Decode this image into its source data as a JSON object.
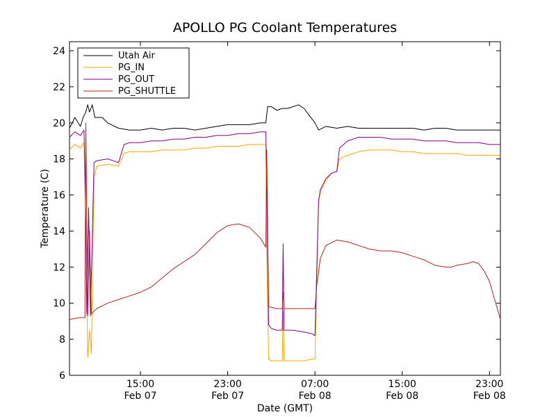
{
  "chart_data": {
    "type": "line",
    "title": "APOLLO PG Coolant Temperatures",
    "xlabel": "Date (GMT)",
    "ylabel": "Temperature (C)",
    "xlim": [
      "2013-02-07 08:30",
      "2013-02-09 00:00"
    ],
    "ylim": [
      6,
      24.5
    ],
    "y_ticks": [
      6,
      8,
      10,
      12,
      14,
      16,
      18,
      20,
      22,
      24
    ],
    "x_ticks": [
      {
        "time": "2013-02-07 15:00",
        "label_time": "15:00",
        "label_date": "Feb 07"
      },
      {
        "time": "2013-02-07 23:00",
        "label_time": "23:00",
        "label_date": "Feb 07"
      },
      {
        "time": "2013-02-08 07:00",
        "label_time": "07:00",
        "label_date": "Feb 08"
      },
      {
        "time": "2013-02-08 15:00",
        "label_time": "15:00",
        "label_date": "Feb 08"
      },
      {
        "time": "2013-02-08 23:00",
        "label_time": "23:00",
        "label_date": "Feb 08"
      }
    ],
    "grid": false,
    "legend_position": "top-left",
    "series": [
      {
        "name": "Utah Air",
        "color": "#000000",
        "points": [
          [
            "2013-02-07 08:30",
            19.7
          ],
          [
            "2013-02-07 09:00",
            20.3
          ],
          [
            "2013-02-07 09:30",
            19.8
          ],
          [
            "2013-02-07 09:45",
            20.3
          ],
          [
            "2013-02-07 10:00",
            20.6
          ],
          [
            "2013-02-07 10:10",
            21.0
          ],
          [
            "2013-02-07 10:20",
            20.6
          ],
          [
            "2013-02-07 10:35",
            21.0
          ],
          [
            "2013-02-07 10:50",
            20.3
          ],
          [
            "2013-02-07 11:30",
            20.3
          ],
          [
            "2013-02-07 12:00",
            20.0
          ],
          [
            "2013-02-07 13:00",
            19.7
          ],
          [
            "2013-02-07 14:00",
            19.6
          ],
          [
            "2013-02-07 15:00",
            19.6
          ],
          [
            "2013-02-07 16:00",
            19.7
          ],
          [
            "2013-02-07 17:00",
            19.6
          ],
          [
            "2013-02-07 18:00",
            19.7
          ],
          [
            "2013-02-07 19:00",
            19.7
          ],
          [
            "2013-02-07 20:00",
            19.6
          ],
          [
            "2013-02-07 21:00",
            19.7
          ],
          [
            "2013-02-07 22:00",
            19.8
          ],
          [
            "2013-02-07 23:00",
            19.9
          ],
          [
            "2013-02-08 00:00",
            19.9
          ],
          [
            "2013-02-08 01:00",
            19.9
          ],
          [
            "2013-02-08 02:00",
            20.0
          ],
          [
            "2013-02-08 02:30",
            20.0
          ],
          [
            "2013-02-08 02:40",
            20.9
          ],
          [
            "2013-02-08 03:00",
            20.9
          ],
          [
            "2013-02-08 03:30",
            20.7
          ],
          [
            "2013-02-08 04:00",
            20.8
          ],
          [
            "2013-02-08 04:30",
            20.8
          ],
          [
            "2013-02-08 05:00",
            20.9
          ],
          [
            "2013-02-08 05:30",
            21.0
          ],
          [
            "2013-02-08 06:00",
            20.8
          ],
          [
            "2013-02-08 06:30",
            20.4
          ],
          [
            "2013-02-08 07:00",
            20.0
          ],
          [
            "2013-02-08 07:20",
            19.6
          ],
          [
            "2013-02-08 08:00",
            19.8
          ],
          [
            "2013-02-08 09:00",
            19.7
          ],
          [
            "2013-02-08 10:00",
            19.8
          ],
          [
            "2013-02-08 11:00",
            19.7
          ],
          [
            "2013-02-08 12:00",
            19.7
          ],
          [
            "2013-02-08 13:00",
            19.7
          ],
          [
            "2013-02-08 14:00",
            19.7
          ],
          [
            "2013-02-08 15:00",
            19.7
          ],
          [
            "2013-02-08 16:00",
            19.7
          ],
          [
            "2013-02-08 17:00",
            19.6
          ],
          [
            "2013-02-08 18:00",
            19.7
          ],
          [
            "2013-02-08 19:00",
            19.7
          ],
          [
            "2013-02-08 20:00",
            19.6
          ],
          [
            "2013-02-08 21:00",
            19.6
          ],
          [
            "2013-02-08 22:00",
            19.6
          ],
          [
            "2013-02-08 23:00",
            19.6
          ],
          [
            "2013-02-09 00:00",
            19.6
          ]
        ]
      },
      {
        "name": "PG_IN",
        "color": "#ffa500",
        "points": [
          [
            "2013-02-07 08:30",
            18.5
          ],
          [
            "2013-02-07 09:00",
            18.8
          ],
          [
            "2013-02-07 09:30",
            18.6
          ],
          [
            "2013-02-07 09:50",
            18.9
          ],
          [
            "2013-02-07 10:00",
            14.0
          ],
          [
            "2013-02-07 10:10",
            7.0
          ],
          [
            "2013-02-07 10:20",
            8.5
          ],
          [
            "2013-02-07 10:30",
            7.2
          ],
          [
            "2013-02-07 10:45",
            17.0
          ],
          [
            "2013-02-07 11:00",
            17.6
          ],
          [
            "2013-02-07 12:00",
            17.7
          ],
          [
            "2013-02-07 13:00",
            17.6
          ],
          [
            "2013-02-07 13:30",
            18.3
          ],
          [
            "2013-02-07 14:00",
            18.4
          ],
          [
            "2013-02-07 15:00",
            18.4
          ],
          [
            "2013-02-07 16:00",
            18.4
          ],
          [
            "2013-02-07 17:00",
            18.5
          ],
          [
            "2013-02-07 18:00",
            18.5
          ],
          [
            "2013-02-07 19:00",
            18.5
          ],
          [
            "2013-02-07 20:00",
            18.6
          ],
          [
            "2013-02-07 21:00",
            18.6
          ],
          [
            "2013-02-07 22:00",
            18.7
          ],
          [
            "2013-02-07 23:00",
            18.7
          ],
          [
            "2013-02-08 00:00",
            18.7
          ],
          [
            "2013-02-08 01:00",
            18.8
          ],
          [
            "2013-02-08 02:00",
            18.8
          ],
          [
            "2013-02-08 02:30",
            18.8
          ],
          [
            "2013-02-08 02:35",
            12.5
          ],
          [
            "2013-02-08 02:45",
            6.9
          ],
          [
            "2013-02-08 03:00",
            6.8
          ],
          [
            "2013-02-08 03:30",
            6.8
          ],
          [
            "2013-02-08 04:00",
            6.8
          ],
          [
            "2013-02-08 04:05",
            9.5
          ],
          [
            "2013-02-08 04:10",
            6.8
          ],
          [
            "2013-02-08 05:00",
            6.8
          ],
          [
            "2013-02-08 06:00",
            6.8
          ],
          [
            "2013-02-08 06:45",
            6.9
          ],
          [
            "2013-02-08 07:00",
            6.9
          ],
          [
            "2013-02-08 07:20",
            15.6
          ],
          [
            "2013-02-08 07:30",
            16.2
          ],
          [
            "2013-02-08 08:00",
            16.8
          ],
          [
            "2013-02-08 08:30",
            17.2
          ],
          [
            "2013-02-08 09:00",
            17.3
          ],
          [
            "2013-02-08 09:15",
            18.0
          ],
          [
            "2013-02-08 10:00",
            18.2
          ],
          [
            "2013-02-08 11:00",
            18.4
          ],
          [
            "2013-02-08 12:00",
            18.5
          ],
          [
            "2013-02-08 13:00",
            18.5
          ],
          [
            "2013-02-08 14:00",
            18.5
          ],
          [
            "2013-02-08 15:00",
            18.4
          ],
          [
            "2013-02-08 16:00",
            18.4
          ],
          [
            "2013-02-08 17:00",
            18.3
          ],
          [
            "2013-02-08 18:00",
            18.3
          ],
          [
            "2013-02-08 19:00",
            18.3
          ],
          [
            "2013-02-08 20:00",
            18.3
          ],
          [
            "2013-02-08 21:00",
            18.2
          ],
          [
            "2013-02-08 22:00",
            18.2
          ],
          [
            "2013-02-08 23:00",
            18.2
          ],
          [
            "2013-02-09 00:00",
            18.2
          ]
        ]
      },
      {
        "name": "PG_OUT",
        "color": "#800080",
        "points": [
          [
            "2013-02-07 08:30",
            19.2
          ],
          [
            "2013-02-07 09:00",
            19.5
          ],
          [
            "2013-02-07 09:30",
            19.3
          ],
          [
            "2013-02-07 09:50",
            19.6
          ],
          [
            "2013-02-07 10:00",
            14.5
          ],
          [
            "2013-02-07 10:05",
            9.4
          ],
          [
            "2013-02-07 10:15",
            15.3
          ],
          [
            "2013-02-07 10:25",
            9.3
          ],
          [
            "2013-02-07 10:45",
            17.8
          ],
          [
            "2013-02-07 11:00",
            17.9
          ],
          [
            "2013-02-07 12:00",
            18.0
          ],
          [
            "2013-02-07 13:00",
            17.8
          ],
          [
            "2013-02-07 13:30",
            18.8
          ],
          [
            "2013-02-07 14:00",
            18.9
          ],
          [
            "2013-02-07 15:00",
            18.9
          ],
          [
            "2013-02-07 16:00",
            19.0
          ],
          [
            "2013-02-07 17:00",
            19.0
          ],
          [
            "2013-02-07 18:00",
            19.1
          ],
          [
            "2013-02-07 19:00",
            19.1
          ],
          [
            "2013-02-07 20:00",
            19.2
          ],
          [
            "2013-02-07 21:00",
            19.2
          ],
          [
            "2013-02-07 22:00",
            19.3
          ],
          [
            "2013-02-07 23:00",
            19.3
          ],
          [
            "2013-02-08 00:00",
            19.4
          ],
          [
            "2013-02-08 01:00",
            19.4
          ],
          [
            "2013-02-08 02:00",
            19.5
          ],
          [
            "2013-02-08 02:30",
            19.5
          ],
          [
            "2013-02-08 02:35",
            16.6
          ],
          [
            "2013-02-08 02:45",
            8.8
          ],
          [
            "2013-02-08 03:00",
            8.6
          ],
          [
            "2013-02-08 03:30",
            8.5
          ],
          [
            "2013-02-08 04:00",
            8.5
          ],
          [
            "2013-02-08 04:05",
            13.3
          ],
          [
            "2013-02-08 04:10",
            8.5
          ],
          [
            "2013-02-08 05:00",
            8.5
          ],
          [
            "2013-02-08 06:00",
            8.4
          ],
          [
            "2013-02-08 06:45",
            8.3
          ],
          [
            "2013-02-08 07:00",
            8.2
          ],
          [
            "2013-02-08 07:20",
            15.7
          ],
          [
            "2013-02-08 07:30",
            16.3
          ],
          [
            "2013-02-08 08:00",
            16.9
          ],
          [
            "2013-02-08 08:30",
            17.2
          ],
          [
            "2013-02-08 09:00",
            17.3
          ],
          [
            "2013-02-08 09:15",
            18.6
          ],
          [
            "2013-02-08 10:00",
            19.0
          ],
          [
            "2013-02-08 11:00",
            19.2
          ],
          [
            "2013-02-08 12:00",
            19.2
          ],
          [
            "2013-02-08 13:00",
            19.2
          ],
          [
            "2013-02-08 14:00",
            19.1
          ],
          [
            "2013-02-08 15:00",
            19.1
          ],
          [
            "2013-02-08 16:00",
            19.1
          ],
          [
            "2013-02-08 17:00",
            19.0
          ],
          [
            "2013-02-08 18:00",
            19.0
          ],
          [
            "2013-02-08 19:00",
            19.0
          ],
          [
            "2013-02-08 20:00",
            18.9
          ],
          [
            "2013-02-08 21:00",
            18.9
          ],
          [
            "2013-02-08 22:00",
            18.9
          ],
          [
            "2013-02-08 23:00",
            18.8
          ],
          [
            "2013-02-09 00:00",
            18.8
          ]
        ]
      },
      {
        "name": "PG_SHUTTLE",
        "color": "#b22222",
        "points": [
          [
            "2013-02-07 08:30",
            9.1
          ],
          [
            "2013-02-07 09:30",
            9.2
          ],
          [
            "2013-02-07 09:55",
            9.2
          ],
          [
            "2013-02-07 10:00",
            20.0
          ],
          [
            "2013-02-07 10:10",
            9.3
          ],
          [
            "2013-02-07 10:20",
            14.0
          ],
          [
            "2013-02-07 10:30",
            9.4
          ],
          [
            "2013-02-07 11:00",
            9.7
          ],
          [
            "2013-02-07 12:00",
            10.0
          ],
          [
            "2013-02-07 13:00",
            10.2
          ],
          [
            "2013-02-07 14:00",
            10.4
          ],
          [
            "2013-02-07 15:00",
            10.6
          ],
          [
            "2013-02-07 16:00",
            10.9
          ],
          [
            "2013-02-07 17:00",
            11.4
          ],
          [
            "2013-02-07 18:00",
            11.9
          ],
          [
            "2013-02-07 19:00",
            12.3
          ],
          [
            "2013-02-07 20:00",
            12.7
          ],
          [
            "2013-02-07 21:00",
            13.3
          ],
          [
            "2013-02-07 22:00",
            13.9
          ],
          [
            "2013-02-07 23:00",
            14.3
          ],
          [
            "2013-02-08 00:00",
            14.4
          ],
          [
            "2013-02-08 01:00",
            14.2
          ],
          [
            "2013-02-08 02:00",
            13.6
          ],
          [
            "2013-02-08 02:30",
            13.1
          ],
          [
            "2013-02-08 02:35",
            18.5
          ],
          [
            "2013-02-08 02:45",
            9.8
          ],
          [
            "2013-02-08 03:30",
            9.7
          ],
          [
            "2013-02-08 04:00",
            9.7
          ],
          [
            "2013-02-08 04:05",
            10.6
          ],
          [
            "2013-02-08 04:10",
            9.7
          ],
          [
            "2013-02-08 05:00",
            9.7
          ],
          [
            "2013-02-08 06:00",
            9.7
          ],
          [
            "2013-02-08 06:45",
            9.7
          ],
          [
            "2013-02-08 07:00",
            9.7
          ],
          [
            "2013-02-08 07:10",
            11.0
          ],
          [
            "2013-02-08 07:30",
            12.5
          ],
          [
            "2013-02-08 08:00",
            13.2
          ],
          [
            "2013-02-08 09:00",
            13.5
          ],
          [
            "2013-02-08 10:00",
            13.4
          ],
          [
            "2013-02-08 11:00",
            13.2
          ],
          [
            "2013-02-08 12:00",
            13.0
          ],
          [
            "2013-02-08 13:00",
            12.9
          ],
          [
            "2013-02-08 14:00",
            12.9
          ],
          [
            "2013-02-08 15:00",
            12.8
          ],
          [
            "2013-02-08 16:00",
            12.6
          ],
          [
            "2013-02-08 17:00",
            12.4
          ],
          [
            "2013-02-08 18:00",
            12.1
          ],
          [
            "2013-02-08 19:00",
            12.0
          ],
          [
            "2013-02-08 19:30",
            12.0
          ],
          [
            "2013-02-08 20:00",
            12.1
          ],
          [
            "2013-02-08 21:00",
            12.2
          ],
          [
            "2013-02-08 21:30",
            12.3
          ],
          [
            "2013-02-08 22:00",
            12.2
          ],
          [
            "2013-02-08 22:30",
            11.8
          ],
          [
            "2013-02-08 23:00",
            11.2
          ],
          [
            "2013-02-09 00:00",
            9.1
          ]
        ]
      }
    ]
  }
}
